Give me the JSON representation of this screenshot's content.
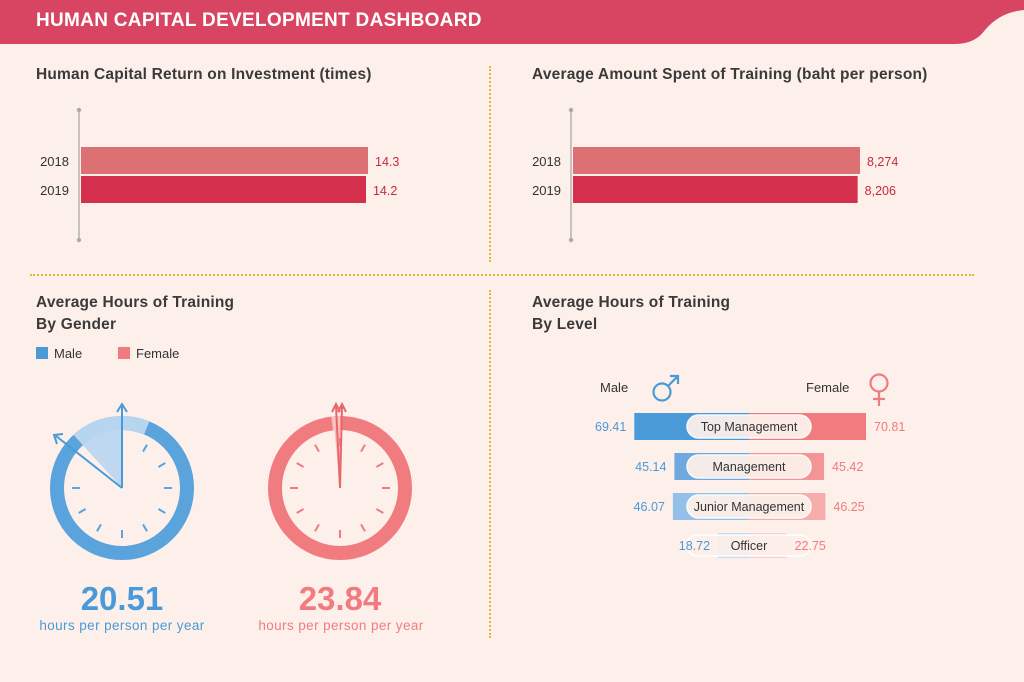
{
  "header": {
    "title": "HUMAN CAPITAL DEVELOPMENT DASHBOARD"
  },
  "colors": {
    "banner": "#d84562",
    "bg": "#fdf0ea",
    "male": "#4a9ad8",
    "female": "#f07c80",
    "bar2018": "#dc7072",
    "bar2019": "#d42f4c",
    "divider": "#e8b830"
  },
  "roi": {
    "title": "Human Capital Return on Investment (times)",
    "chart_data": {
      "type": "bar",
      "orientation": "horizontal",
      "categories": [
        "2018",
        "2019"
      ],
      "values": [
        14.3,
        14.2
      ],
      "labels": [
        "14.3",
        "14.2"
      ],
      "xlim": [
        0,
        14.3
      ]
    }
  },
  "spend": {
    "title": "Average Amount Spent of Training (baht per person)",
    "chart_data": {
      "type": "bar",
      "orientation": "horizontal",
      "categories": [
        "2018",
        "2019"
      ],
      "values": [
        8274,
        8206
      ],
      "labels": [
        "8,274",
        "8,206"
      ],
      "xlim": [
        0,
        8274
      ]
    }
  },
  "gender": {
    "title_line1": "Average Hours of Training",
    "title_line2": "By Gender",
    "legend": {
      "male": "Male",
      "female": "Female"
    },
    "male": {
      "value": "20.51",
      "unit": "hours per person per year"
    },
    "female": {
      "value": "23.84",
      "unit": "hours per person per year"
    }
  },
  "level": {
    "title_line1": "Average Hours of Training",
    "title_line2": "By Level",
    "male_label": "Male",
    "female_label": "Female",
    "chart_data": {
      "type": "bar",
      "orientation": "horizontal",
      "categories": [
        "Top Management",
        "Management",
        "Junior Management",
        "Officer"
      ],
      "series": [
        {
          "name": "Male",
          "values": [
            69.41,
            45.14,
            46.07,
            18.72
          ],
          "labels": [
            "69.41",
            "45.14",
            "46.07",
            "18.72"
          ]
        },
        {
          "name": "Female",
          "values": [
            70.81,
            45.42,
            46.25,
            22.75
          ],
          "labels": [
            "70.81",
            "45.42",
            "46.25",
            "22.75"
          ]
        }
      ]
    }
  }
}
